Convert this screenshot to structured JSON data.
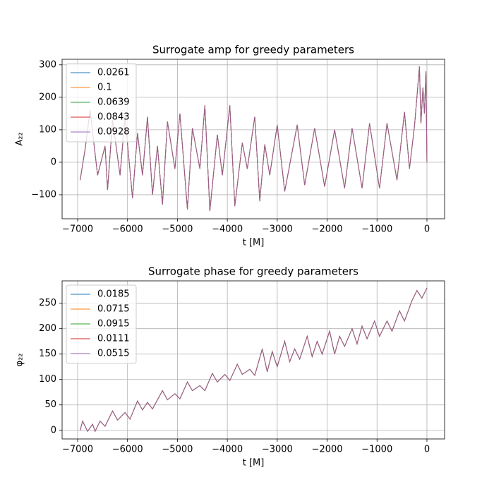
{
  "chart_data": [
    {
      "type": "line",
      "title": "Surrogate amp for greedy parameters",
      "xlabel": "t [M]",
      "ylabel": "A₂₂",
      "x": [
        -6950,
        -6850,
        -6750,
        -6600,
        -6450,
        -6400,
        -6300,
        -6150,
        -6050,
        -5900,
        -5800,
        -5700,
        -5600,
        -5500,
        -5400,
        -5300,
        -5200,
        -5050,
        -4950,
        -4800,
        -4700,
        -4550,
        -4450,
        -4350,
        -4200,
        -4100,
        -3950,
        -3850,
        -3700,
        -3600,
        -3450,
        -3350,
        -3250,
        -3150,
        -3000,
        -2850,
        -2600,
        -2450,
        -2250,
        -2050,
        -1850,
        -1650,
        -1500,
        -1300,
        -1150,
        -950,
        -800,
        -600,
        -450,
        -350,
        -250,
        -150,
        -120,
        -80,
        -50,
        -20,
        0
      ],
      "series": [
        {
          "name": "0.0261",
          "color": "#1f77b4",
          "values": [
            -55,
            40,
            160,
            -40,
            50,
            -85,
            130,
            -40,
            140,
            -110,
            90,
            -40,
            140,
            -100,
            50,
            -130,
            125,
            -20,
            150,
            -145,
            105,
            -20,
            175,
            -150,
            85,
            -40,
            175,
            -135,
            60,
            -20,
            140,
            -120,
            55,
            -40,
            115,
            -90,
            115,
            -70,
            105,
            -75,
            100,
            -80,
            105,
            -80,
            120,
            -80,
            120,
            -55,
            155,
            -20,
            110,
            295,
            120,
            230,
            150,
            280,
            0
          ]
        },
        {
          "name": "0.1",
          "color": "#ff7f0e",
          "values": [
            -55,
            40,
            160,
            -40,
            50,
            -85,
            130,
            -40,
            140,
            -110,
            90,
            -40,
            140,
            -100,
            50,
            -130,
            125,
            -20,
            150,
            -145,
            105,
            -20,
            175,
            -150,
            85,
            -40,
            175,
            -135,
            60,
            -20,
            140,
            -120,
            55,
            -40,
            115,
            -90,
            115,
            -70,
            105,
            -75,
            100,
            -80,
            105,
            -80,
            120,
            -80,
            120,
            -55,
            155,
            -20,
            110,
            295,
            120,
            230,
            150,
            280,
            0
          ]
        },
        {
          "name": "0.0639",
          "color": "#2ca02c",
          "values": [
            -55,
            40,
            160,
            -40,
            50,
            -85,
            130,
            -40,
            140,
            -110,
            90,
            -40,
            140,
            -100,
            50,
            -130,
            125,
            -20,
            150,
            -145,
            105,
            -20,
            175,
            -150,
            85,
            -40,
            175,
            -135,
            60,
            -20,
            140,
            -120,
            55,
            -40,
            115,
            -90,
            115,
            -70,
            105,
            -75,
            100,
            -80,
            105,
            -80,
            120,
            -80,
            120,
            -55,
            155,
            -20,
            110,
            295,
            120,
            230,
            150,
            280,
            0
          ]
        },
        {
          "name": "0.0843",
          "color": "#d62728",
          "values": [
            -55,
            40,
            160,
            -40,
            50,
            -85,
            130,
            -40,
            140,
            -110,
            90,
            -40,
            140,
            -100,
            50,
            -130,
            125,
            -20,
            150,
            -145,
            105,
            -20,
            175,
            -150,
            85,
            -40,
            175,
            -135,
            60,
            -20,
            140,
            -120,
            55,
            -40,
            115,
            -90,
            115,
            -70,
            105,
            -75,
            100,
            -80,
            105,
            -80,
            120,
            -80,
            120,
            -55,
            155,
            -20,
            110,
            295,
            120,
            230,
            150,
            280,
            0
          ]
        },
        {
          "name": "0.0928",
          "color": "#9467bd",
          "values": [
            -55,
            40,
            160,
            -40,
            50,
            -85,
            130,
            -40,
            140,
            -110,
            90,
            -40,
            140,
            -100,
            50,
            -130,
            125,
            -20,
            150,
            -145,
            105,
            -20,
            175,
            -150,
            85,
            -40,
            175,
            -135,
            60,
            -20,
            140,
            -120,
            55,
            -40,
            115,
            -90,
            115,
            -70,
            105,
            -75,
            100,
            -80,
            105,
            -80,
            120,
            -80,
            120,
            -55,
            155,
            -20,
            110,
            295,
            120,
            230,
            150,
            280,
            0
          ]
        }
      ],
      "xlim": [
        -7311,
        354
      ],
      "ylim": [
        -174,
        317
      ],
      "xticks": [
        {
          "value": -7000,
          "label": "−7000"
        },
        {
          "value": -6000,
          "label": "−6000"
        },
        {
          "value": -5000,
          "label": "−5000"
        },
        {
          "value": -4000,
          "label": "−4000"
        },
        {
          "value": -3000,
          "label": "−3000"
        },
        {
          "value": -2000,
          "label": "−2000"
        },
        {
          "value": -1000,
          "label": "−1000"
        },
        0
      ],
      "yticks": [
        {
          "value": -100,
          "label": "−100"
        },
        0,
        100,
        200,
        300
      ],
      "grid": true,
      "legend": "upper left"
    },
    {
      "type": "line",
      "title": "Surrogate phase for greedy parameters",
      "xlabel": "t [M]",
      "ylabel": "φ₂₂",
      "x": [
        -6950,
        -6900,
        -6800,
        -6700,
        -6650,
        -6550,
        -6450,
        -6300,
        -6200,
        -6050,
        -5950,
        -5800,
        -5700,
        -5600,
        -5500,
        -5300,
        -5200,
        -5050,
        -4950,
        -4800,
        -4700,
        -4550,
        -4450,
        -4300,
        -4200,
        -4050,
        -3950,
        -3800,
        -3700,
        -3550,
        -3450,
        -3300,
        -3200,
        -3100,
        -3000,
        -2850,
        -2750,
        -2650,
        -2550,
        -2400,
        -2300,
        -2200,
        -2100,
        -1950,
        -1850,
        -1750,
        -1650,
        -1500,
        -1400,
        -1300,
        -1200,
        -1050,
        -950,
        -800,
        -700,
        -550,
        -450,
        -300,
        -200,
        -100,
        0
      ],
      "series": [
        {
          "name": "0.0185",
          "color": "#1f77b4",
          "values": [
            0,
            18,
            -2,
            12,
            -2,
            18,
            8,
            38,
            20,
            35,
            22,
            58,
            40,
            55,
            42,
            78,
            60,
            72,
            62,
            95,
            78,
            88,
            78,
            112,
            95,
            110,
            98,
            130,
            110,
            120,
            108,
            160,
            115,
            155,
            125,
            175,
            135,
            160,
            140,
            185,
            145,
            175,
            150,
            195,
            150,
            185,
            165,
            200,
            170,
            205,
            180,
            215,
            185,
            215,
            195,
            235,
            215,
            255,
            275,
            260,
            280
          ]
        },
        {
          "name": "0.0715",
          "color": "#ff7f0e",
          "values": [
            0,
            18,
            -2,
            12,
            -2,
            18,
            8,
            38,
            20,
            35,
            22,
            58,
            40,
            55,
            42,
            78,
            60,
            72,
            62,
            95,
            78,
            88,
            78,
            112,
            95,
            110,
            98,
            130,
            110,
            120,
            108,
            160,
            115,
            155,
            125,
            175,
            135,
            160,
            140,
            185,
            145,
            175,
            150,
            195,
            150,
            185,
            165,
            200,
            170,
            205,
            180,
            215,
            185,
            215,
            195,
            235,
            215,
            255,
            275,
            260,
            280
          ]
        },
        {
          "name": "0.0915",
          "color": "#2ca02c",
          "values": [
            0,
            18,
            -2,
            12,
            -2,
            18,
            8,
            38,
            20,
            35,
            22,
            58,
            40,
            55,
            42,
            78,
            60,
            72,
            62,
            95,
            78,
            88,
            78,
            112,
            95,
            110,
            98,
            130,
            110,
            120,
            108,
            160,
            115,
            155,
            125,
            175,
            135,
            160,
            140,
            185,
            145,
            175,
            150,
            195,
            150,
            185,
            165,
            200,
            170,
            205,
            180,
            215,
            185,
            215,
            195,
            235,
            215,
            255,
            275,
            260,
            280
          ]
        },
        {
          "name": "0.0111",
          "color": "#d62728",
          "values": [
            0,
            18,
            -2,
            12,
            -2,
            18,
            8,
            38,
            20,
            35,
            22,
            58,
            40,
            55,
            42,
            78,
            60,
            72,
            62,
            95,
            78,
            88,
            78,
            112,
            95,
            110,
            98,
            130,
            110,
            120,
            108,
            160,
            115,
            155,
            125,
            175,
            135,
            160,
            140,
            185,
            145,
            175,
            150,
            195,
            150,
            185,
            165,
            200,
            170,
            205,
            180,
            215,
            185,
            215,
            195,
            235,
            215,
            255,
            275,
            260,
            280
          ]
        },
        {
          "name": "0.0515",
          "color": "#9467bd",
          "values": [
            0,
            18,
            -2,
            12,
            -2,
            18,
            8,
            38,
            20,
            35,
            22,
            58,
            40,
            55,
            42,
            78,
            60,
            72,
            62,
            95,
            78,
            88,
            78,
            112,
            95,
            110,
            98,
            130,
            110,
            120,
            108,
            160,
            115,
            155,
            125,
            175,
            135,
            160,
            140,
            185,
            145,
            175,
            150,
            195,
            150,
            185,
            165,
            200,
            170,
            205,
            180,
            215,
            185,
            215,
            195,
            235,
            215,
            255,
            275,
            260,
            280
          ]
        }
      ],
      "xlim": [
        -7311,
        354
      ],
      "ylim": [
        -17,
        294
      ],
      "xticks": [
        {
          "value": -7000,
          "label": "−7000"
        },
        {
          "value": -6000,
          "label": "−6000"
        },
        {
          "value": -5000,
          "label": "−5000"
        },
        {
          "value": -4000,
          "label": "−4000"
        },
        {
          "value": -3000,
          "label": "−3000"
        },
        {
          "value": -2000,
          "label": "−2000"
        },
        {
          "value": -1000,
          "label": "−1000"
        },
        0
      ],
      "yticks": [
        0,
        50,
        100,
        150,
        200,
        250
      ],
      "grid": true,
      "legend": "upper left"
    }
  ]
}
